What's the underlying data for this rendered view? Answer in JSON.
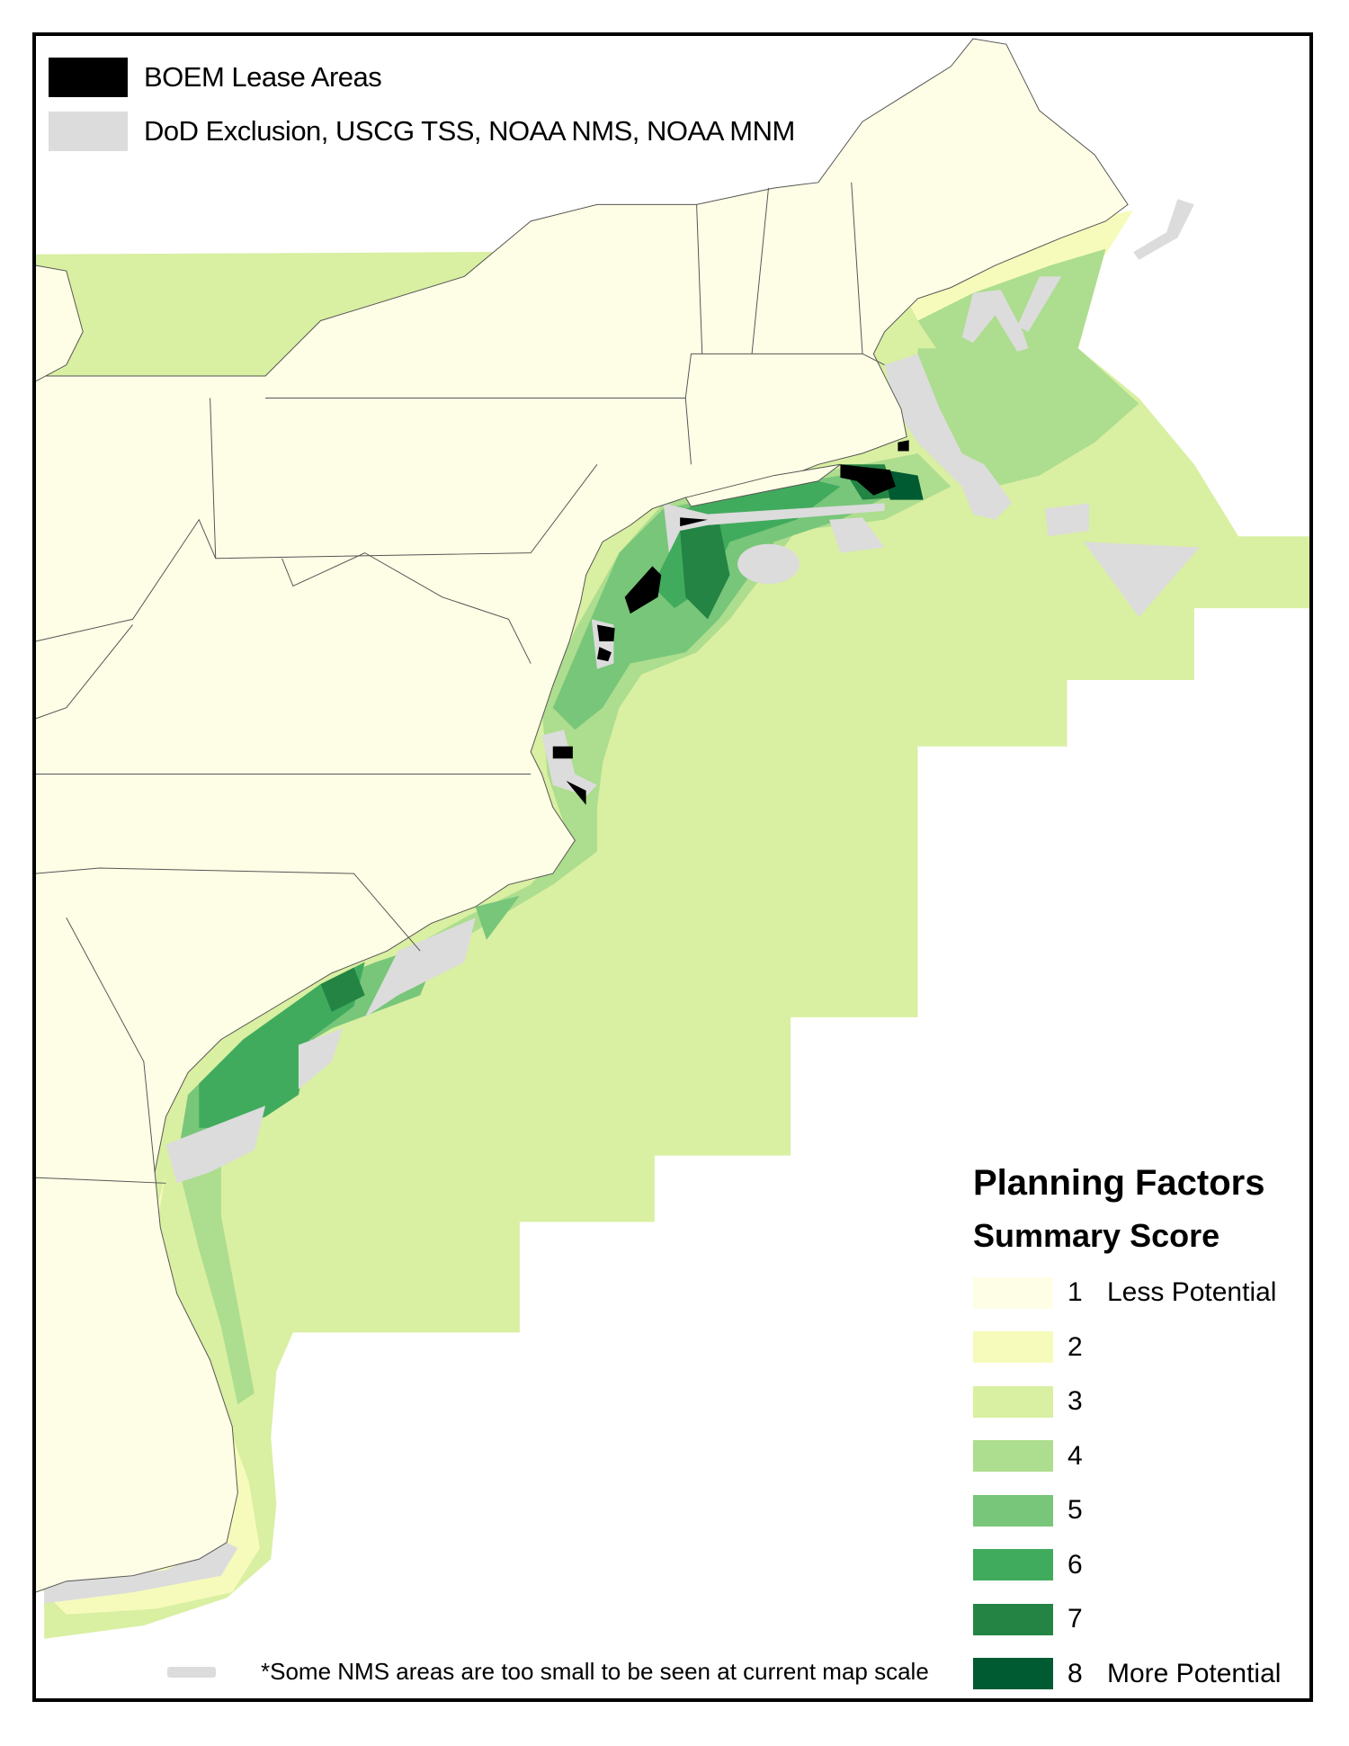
{
  "map_legend": {
    "items": [
      {
        "label": "BOEM Lease Areas",
        "color": "#000000"
      },
      {
        "label": "DoD Exclusion, USCG TSS, NOAA NMS, NOAA MNM",
        "color": "#dcdcdc"
      }
    ]
  },
  "score_legend": {
    "title": "Planning Factors",
    "subtitle": "Summary Score",
    "classes": [
      {
        "value": "1",
        "label": "Less Potential",
        "color": "#fefee6"
      },
      {
        "value": "2",
        "label": "",
        "color": "#f6fbbb"
      },
      {
        "value": "3",
        "label": "",
        "color": "#d9efa2"
      },
      {
        "value": "4",
        "label": "",
        "color": "#addd8e"
      },
      {
        "value": "5",
        "label": "",
        "color": "#78c679"
      },
      {
        "value": "6",
        "label": "",
        "color": "#41ab5d"
      },
      {
        "value": "7",
        "label": "",
        "color": "#238443"
      },
      {
        "value": "8",
        "label": "More Potential",
        "color": "#005a32"
      }
    ]
  },
  "footnote": "*Some NMS areas are too small to be seen at current map scale",
  "colors": {
    "land": "#fefee6",
    "boundary": "#555555",
    "ocean": "#ffffff"
  }
}
